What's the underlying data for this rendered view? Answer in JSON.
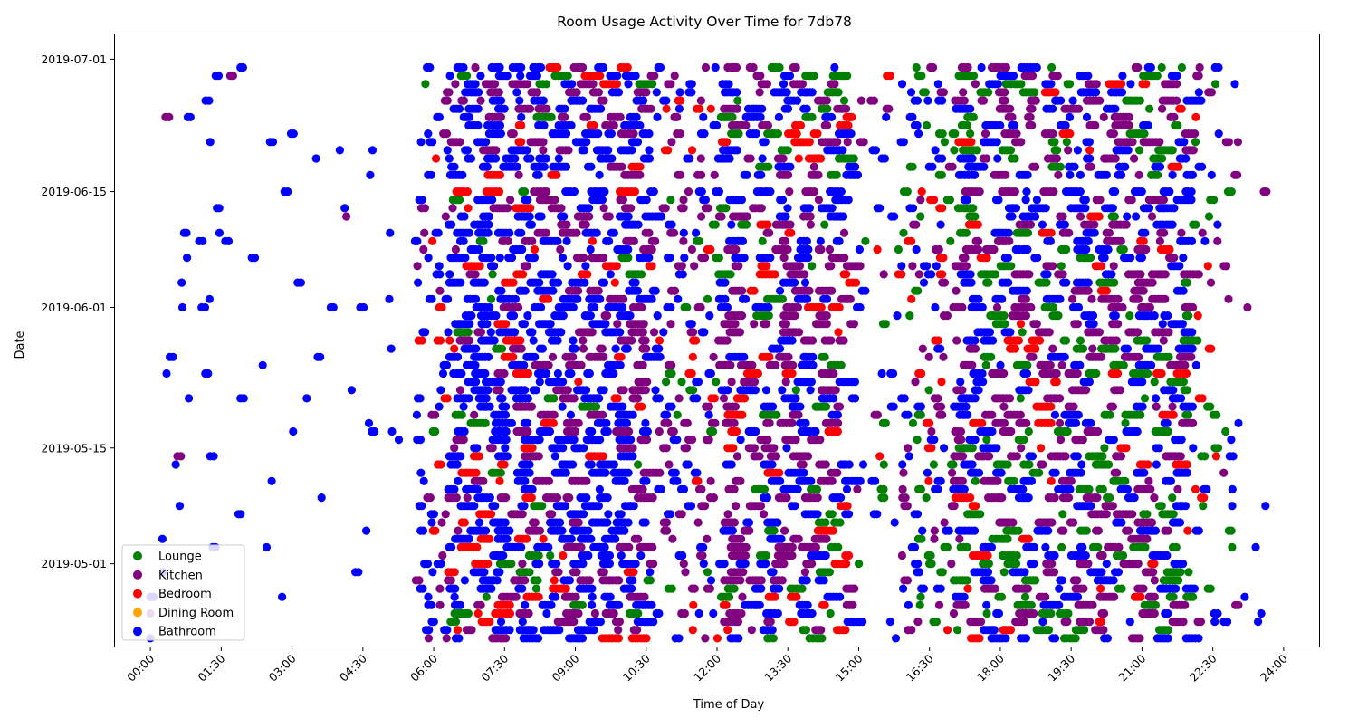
{
  "chart_data": {
    "type": "scatter",
    "title": "Room Usage Activity Over Time for 7db78",
    "xlabel": "Time of Day",
    "ylabel": "Date",
    "x_unit": "hours",
    "xlim": [
      -0.75,
      24.75
    ],
    "ylim": [
      "2019-04-21",
      "2019-07-04"
    ],
    "grid": false,
    "legend_position": "lower-left",
    "x_ticks": [
      "00:00",
      "01:30",
      "03:00",
      "04:30",
      "06:00",
      "07:30",
      "09:00",
      "10:30",
      "12:00",
      "13:30",
      "15:00",
      "16:30",
      "18:00",
      "19:30",
      "21:00",
      "22:30",
      "24:00"
    ],
    "y_ticks": [
      "2019-05-01",
      "2019-05-15",
      "2019-06-01",
      "2019-06-15",
      "2019-07-01"
    ],
    "date_range": [
      "2019-04-22",
      "2019-06-30"
    ],
    "missing_dates": [
      "2019-06-16"
    ],
    "series": [
      {
        "name": "Lounge",
        "color": "#008000"
      },
      {
        "name": "Kitchen",
        "color": "#800080"
      },
      {
        "name": "Bedroom",
        "color": "#ff0000"
      },
      {
        "name": "Dining Room",
        "color": "#ffa500"
      },
      {
        "name": "Bathroom",
        "color": "#0000ff"
      }
    ],
    "activity_windows": [
      {
        "start": 5.9,
        "end": 10.6,
        "level": "very high"
      },
      {
        "start": 10.6,
        "end": 15.0,
        "level": "high"
      },
      {
        "start": 15.9,
        "end": 23.0,
        "level": "high"
      },
      {
        "start": 23.0,
        "end": 24.0,
        "level": "sparse"
      },
      {
        "start": 0.0,
        "end": 5.9,
        "level": "sparse"
      }
    ]
  }
}
